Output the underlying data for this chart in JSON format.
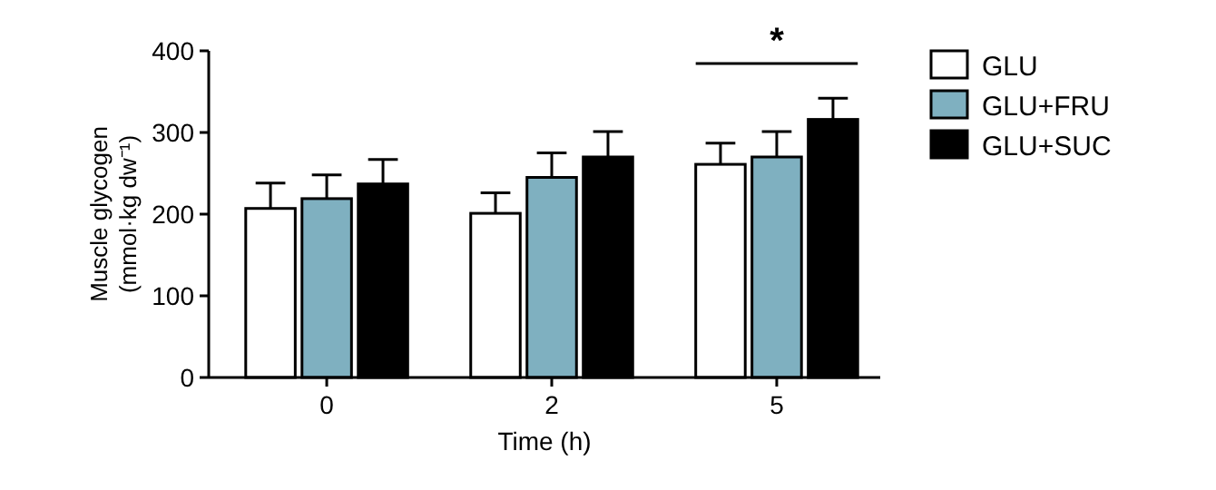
{
  "chart_data": {
    "type": "bar",
    "xlabel": "Time (h)",
    "ylabel": "Muscle glycogen\n(mmol·kg dw⁻¹)",
    "categories": [
      "0",
      "2",
      "5"
    ],
    "series": [
      {
        "name": "GLU",
        "color": "#ffffff",
        "values": [
          207,
          201,
          261
        ],
        "errors": [
          [
            207,
            238
          ],
          [
            201,
            226
          ],
          [
            261,
            287
          ]
        ]
      },
      {
        "name": "GLU+FRU",
        "color": "#7fb0c0",
        "values": [
          219,
          245,
          270
        ],
        "errors": [
          [
            219,
            248
          ],
          [
            245,
            275
          ],
          [
            270,
            301
          ]
        ]
      },
      {
        "name": "GLU+SUC",
        "color": "#000000",
        "values": [
          237,
          270,
          316
        ],
        "errors": [
          [
            237,
            267
          ],
          [
            270,
            301
          ],
          [
            316,
            342
          ]
        ]
      }
    ],
    "ylim": [
      0,
      400
    ],
    "yticks": [
      0,
      100,
      200,
      300,
      400
    ],
    "grid": false,
    "legend": "top right",
    "annotations": [
      "*"
    ]
  }
}
